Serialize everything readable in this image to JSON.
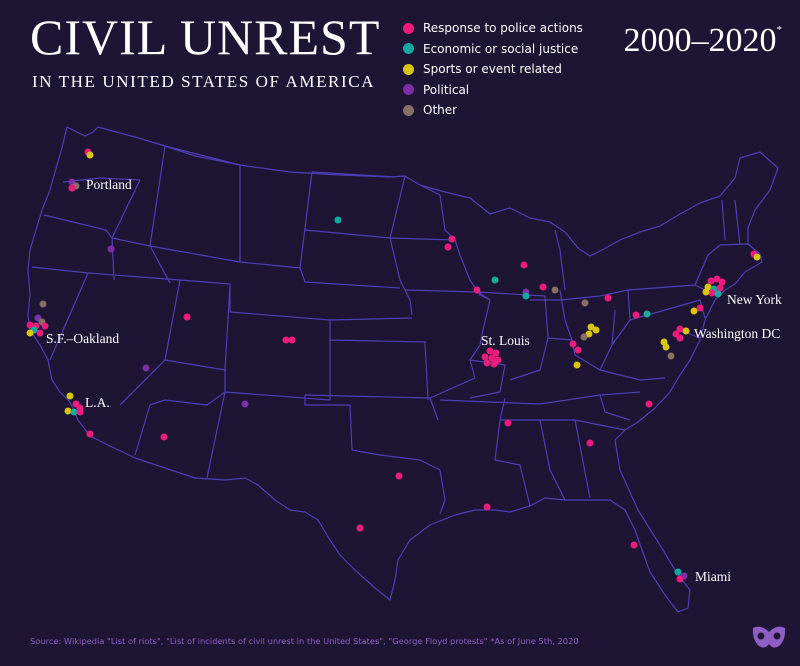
{
  "header": {
    "title": "CIVIL UNREST",
    "subtitle": "IN THE UNITED STATES OF AMERICA",
    "years": "2000–2020",
    "years_note": "*"
  },
  "legend": [
    {
      "label": "Response to police actions",
      "color": "#ee1b7f"
    },
    {
      "label": "Economic or social justice",
      "color": "#13aaa0"
    },
    {
      "label": "Sports or event related",
      "color": "#d8c40d"
    },
    {
      "label": "Political",
      "color": "#7c2fa6"
    },
    {
      "label": "Other",
      "color": "#867065"
    }
  ],
  "colors": {
    "background": "#1e1434",
    "borders": "#4d3fb5",
    "source_text": "#8f5ec4"
  },
  "cities": {
    "portland": "Portland",
    "sf_oakland": "S.F.–Oakland",
    "la": "L.A.",
    "st_louis": "St. Louis",
    "new_york": "New York",
    "washington_dc": "Washington DC",
    "miami": "Miami"
  },
  "footer": {
    "source": "Source: Wikipedia \"List of riots\", \"List of incidents of civil unrest in the United States\", \"George Floyd protests\"   *As of June 5th, 2020"
  },
  "logo_icon": "mask-logo-icon"
}
